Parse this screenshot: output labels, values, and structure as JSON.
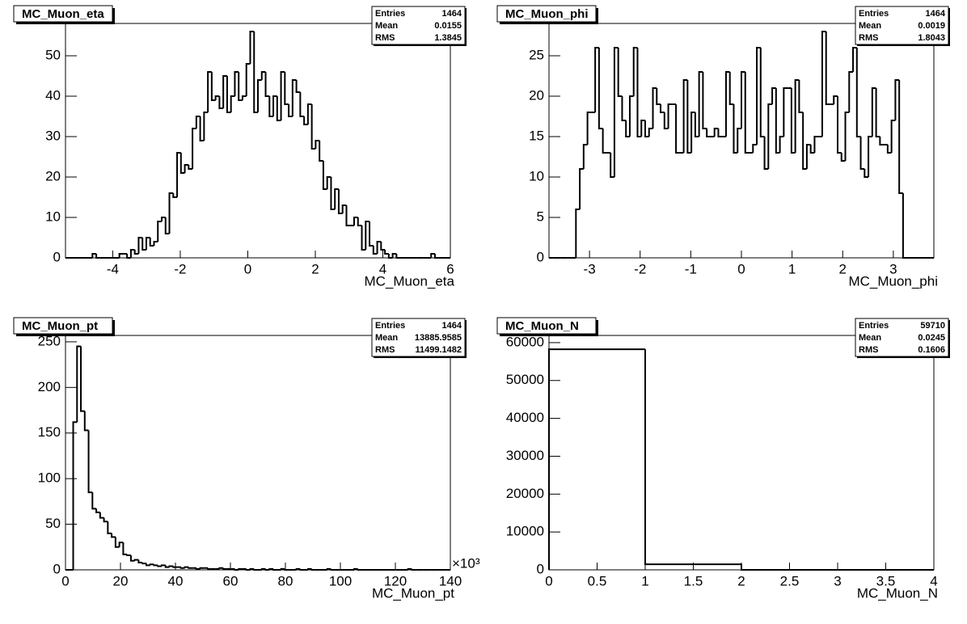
{
  "chart_data": [
    {
      "type": "histogram",
      "title": "MC_Muon_eta",
      "x_label": "MC_Muon_eta",
      "stats": [
        {
          "label": "Entries",
          "value": 1464
        },
        {
          "label": "Mean",
          "value": 0.0155
        },
        {
          "label": "RMS",
          "value": 1.3845
        }
      ],
      "xlim": [
        -5.4,
        6
      ],
      "xticks": [
        -4,
        -2,
        0,
        2,
        4,
        6
      ],
      "ylim": [
        0,
        58
      ],
      "yticks": [
        0,
        10,
        20,
        30,
        40,
        50
      ],
      "color": "#000000",
      "bins": [
        -5.4,
        -5.286,
        -5.172,
        -5.058,
        -4.944,
        -4.83,
        -4.716,
        -4.602,
        -4.488,
        -4.374,
        -4.26,
        -4.146,
        -4.032,
        -3.918,
        -3.804,
        -3.69,
        -3.576,
        -3.462,
        -3.348,
        -3.234,
        -3.12,
        -3.006,
        -2.892,
        -2.778,
        -2.664,
        -2.55,
        -2.436,
        -2.322,
        -2.208,
        -2.094,
        -1.98,
        -1.866,
        -1.752,
        -1.638,
        -1.524,
        -1.41,
        -1.296,
        -1.182,
        -1.068,
        -0.954,
        -0.84,
        -0.726,
        -0.612,
        -0.498,
        -0.384,
        -0.27,
        -0.156,
        -0.042,
        0.072,
        0.186,
        0.3,
        0.414,
        0.528,
        0.642,
        0.756,
        0.87,
        0.984,
        1.098,
        1.212,
        1.326,
        1.44,
        1.554,
        1.668,
        1.782,
        1.896,
        2.01,
        2.124,
        2.238,
        2.352,
        2.466,
        2.58,
        2.694,
        2.808,
        2.922,
        3.036,
        3.15,
        3.264,
        3.378,
        3.492,
        3.606,
        3.72,
        3.834,
        3.948,
        4.062,
        4.176,
        4.29,
        4.404,
        4.518,
        4.632,
        4.746,
        4.86,
        4.974,
        5.088,
        5.202,
        5.316,
        5.43,
        5.544,
        5.658,
        5.772,
        5.886,
        6
      ],
      "values": [
        0,
        0,
        0,
        0,
        0,
        0,
        0,
        1,
        0,
        0,
        0,
        0,
        0,
        0,
        1,
        1,
        0,
        2,
        1,
        5,
        2,
        5,
        3,
        4,
        9,
        10,
        6,
        16,
        15,
        26,
        21,
        23,
        22,
        32,
        35,
        29,
        36,
        46,
        39,
        40,
        37,
        45,
        36,
        40,
        46,
        39,
        40,
        48,
        56,
        36,
        44,
        46,
        40,
        35,
        40,
        34,
        46,
        38,
        35,
        44,
        41,
        35,
        33,
        38,
        27,
        29,
        24,
        17,
        20,
        12,
        17,
        11,
        13,
        8,
        8,
        10,
        8,
        2,
        9,
        3,
        1,
        4,
        2,
        1,
        0,
        1,
        0,
        0,
        0,
        0,
        0,
        0,
        0,
        0,
        0,
        1,
        0,
        0,
        0,
        0
      ]
    },
    {
      "type": "histogram",
      "title": "MC_Muon_phi",
      "x_label": "MC_Muon_phi",
      "stats": [
        {
          "label": "Entries",
          "value": 1464
        },
        {
          "label": "Mean",
          "value": 0.0019
        },
        {
          "label": "RMS",
          "value": 1.8043
        }
      ],
      "xlim": [
        -3.8,
        3.8
      ],
      "xticks": [
        -3,
        -2,
        -1,
        0,
        1,
        2,
        3
      ],
      "ylim": [
        0,
        29
      ],
      "yticks": [
        0,
        5,
        10,
        15,
        20,
        25
      ],
      "color": "#000000",
      "bins": [
        -3.8,
        -3.724,
        -3.648,
        -3.572,
        -3.496,
        -3.42,
        -3.344,
        -3.268,
        -3.192,
        -3.116,
        -3.04,
        -2.964,
        -2.888,
        -2.812,
        -2.736,
        -2.66,
        -2.584,
        -2.508,
        -2.432,
        -2.356,
        -2.28,
        -2.204,
        -2.128,
        -2.052,
        -1.976,
        -1.9,
        -1.824,
        -1.748,
        -1.672,
        -1.596,
        -1.52,
        -1.444,
        -1.368,
        -1.292,
        -1.216,
        -1.14,
        -1.064,
        -0.988,
        -0.912,
        -0.836,
        -0.76,
        -0.684,
        -0.608,
        -0.532,
        -0.456,
        -0.38,
        -0.304,
        -0.228,
        -0.152,
        -0.076,
        0,
        0.076,
        0.152,
        0.228,
        0.304,
        0.38,
        0.456,
        0.532,
        0.608,
        0.684,
        0.76,
        0.836,
        0.912,
        0.988,
        1.064,
        1.14,
        1.216,
        1.292,
        1.368,
        1.444,
        1.52,
        1.596,
        1.672,
        1.748,
        1.824,
        1.9,
        1.976,
        2.052,
        2.128,
        2.204,
        2.28,
        2.356,
        2.432,
        2.508,
        2.584,
        2.66,
        2.736,
        2.812,
        2.888,
        2.964,
        3.04,
        3.116,
        3.192,
        3.268,
        3.344,
        3.42,
        3.496,
        3.572,
        3.648,
        3.724,
        3.8
      ],
      "values": [
        0,
        0,
        0,
        0,
        0,
        0,
        0,
        6,
        11,
        14,
        18,
        18,
        26,
        16,
        13,
        13,
        10,
        26,
        20,
        17,
        15,
        20,
        26,
        15,
        17,
        15,
        16,
        21,
        19,
        18,
        16,
        19,
        19,
        13,
        13,
        22,
        13,
        18,
        15,
        23,
        16,
        15,
        15,
        16,
        15,
        15,
        23,
        19,
        13,
        16,
        23,
        13,
        13,
        14,
        26,
        15,
        11,
        19,
        21,
        13,
        15,
        21,
        21,
        13,
        22,
        18,
        11,
        14,
        13,
        15,
        15,
        28,
        19,
        19,
        20,
        13,
        12,
        18,
        23,
        26,
        15,
        11,
        10,
        15,
        21,
        15,
        14,
        14,
        13,
        17,
        22,
        8,
        0,
        0,
        0,
        0,
        0,
        0,
        0,
        0
      ]
    },
    {
      "type": "histogram",
      "title": "MC_Muon_pt",
      "x_label": "MC_Muon_pt",
      "x_exponent": "×10³",
      "stats": [
        {
          "label": "Entries",
          "value": 1464
        },
        {
          "label": "Mean",
          "value": 13885.9585
        },
        {
          "label": "RMS",
          "value": 11499.1482
        }
      ],
      "xlim": [
        0,
        140
      ],
      "xticks": [
        0,
        20,
        40,
        60,
        80,
        100,
        120,
        140
      ],
      "ylim": [
        0,
        257
      ],
      "yticks": [
        0,
        50,
        100,
        150,
        200,
        250
      ],
      "color": "#000000",
      "bins": [
        0,
        1.4,
        2.8,
        4.2,
        5.6,
        7,
        8.4,
        9.8,
        11.2,
        12.6,
        14,
        15.4,
        16.8,
        18.2,
        19.6,
        21,
        22.4,
        23.8,
        25.2,
        26.6,
        28,
        29.4,
        30.8,
        32.2,
        33.6,
        35,
        36.4,
        37.8,
        39.2,
        40.6,
        42,
        43.4,
        44.8,
        46.2,
        47.6,
        49,
        50.4,
        51.8,
        53.2,
        54.6,
        56,
        57.4,
        58.8,
        60.2,
        61.6,
        63,
        64.4,
        65.8,
        67.2,
        68.6,
        70,
        71.4,
        72.8,
        74.2,
        75.6,
        77,
        78.4,
        79.8,
        81.2,
        82.6,
        84,
        85.4,
        86.8,
        88.2,
        89.6,
        91,
        92.4,
        93.8,
        95.2,
        96.6,
        98,
        99.4,
        100.8,
        102.2,
        103.6,
        105,
        106.4,
        107.8,
        109.2,
        110.6,
        112,
        113.4,
        114.8,
        116.2,
        117.6,
        119,
        120.4,
        121.8,
        123.2,
        124.6,
        126,
        127.4,
        128.8,
        130.2,
        131.6,
        133,
        134.4,
        135.8,
        137.2,
        138.6,
        140
      ],
      "values": [
        0,
        0,
        162,
        245,
        174,
        153,
        85,
        67,
        63,
        57,
        53,
        40,
        36,
        25,
        30,
        17,
        16,
        10,
        11,
        8,
        7,
        5,
        6,
        5,
        4,
        5,
        3,
        4,
        3,
        3,
        2,
        3,
        2,
        2,
        1,
        2,
        2,
        1,
        1,
        1,
        2,
        1,
        1,
        1,
        0,
        1,
        1,
        0,
        1,
        0,
        0,
        1,
        0,
        1,
        0,
        0,
        1,
        0,
        0,
        0,
        1,
        0,
        0,
        1,
        0,
        0,
        0,
        0,
        1,
        0,
        0,
        0,
        0,
        0,
        0,
        1,
        0,
        0,
        0,
        0,
        0,
        0,
        0,
        0,
        0,
        0,
        0,
        0,
        0,
        1,
        0,
        0,
        0,
        0,
        0,
        0,
        0,
        0,
        0,
        0
      ]
    },
    {
      "type": "histogram",
      "title": "MC_Muon_N",
      "x_label": "MC_Muon_N",
      "stats": [
        {
          "label": "Entries",
          "value": 59710
        },
        {
          "label": "Mean",
          "value": 0.0245
        },
        {
          "label": "RMS",
          "value": 0.1606
        }
      ],
      "xlim": [
        0,
        4
      ],
      "xticks": [
        0,
        0.5,
        1,
        1.5,
        2,
        2.5,
        3,
        3.5,
        4
      ],
      "ylim": [
        0,
        61900
      ],
      "yticks": [
        0,
        10000,
        20000,
        30000,
        40000,
        50000,
        60000
      ],
      "color": "#000000",
      "bins": [
        0,
        1,
        2,
        3,
        4
      ],
      "values": [
        58246,
        1464,
        0,
        0
      ]
    }
  ]
}
